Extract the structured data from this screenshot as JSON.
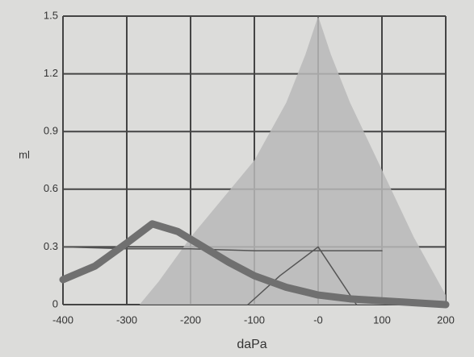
{
  "chart_data": {
    "type": "line",
    "xlabel": "daPa",
    "ylabel": "ml",
    "xlim": [
      -400,
      200
    ],
    "ylim": [
      0,
      1.5
    ],
    "xticks": [
      -400,
      -300,
      -200,
      -100,
      {
        "value": 0,
        "label": "-0"
      },
      100,
      200
    ],
    "yticks": [
      0,
      0.3,
      0.6,
      0.9,
      1.2,
      1.5
    ],
    "grid": true,
    "series": [
      {
        "kind": "area",
        "color": "#b8b8b8",
        "x": [
          -280,
          -250,
          -200,
          -150,
          -100,
          -50,
          -20,
          0,
          20,
          50,
          100,
          150,
          200
        ],
        "values": [
          0,
          0.12,
          0.35,
          0.55,
          0.75,
          1.05,
          1.3,
          1.5,
          1.3,
          1.05,
          0.7,
          0.35,
          0.05
        ]
      },
      {
        "kind": "line",
        "color": "#555",
        "width": 1.5,
        "x": [
          -400,
          -300,
          -200,
          -100,
          0,
          100
        ],
        "values": [
          0.3,
          0.29,
          0.29,
          0.28,
          0.28,
          0.28
        ]
      },
      {
        "kind": "line",
        "color": "#555",
        "width": 1.5,
        "x": [
          -110,
          -60,
          0,
          30,
          60
        ],
        "values": [
          0,
          0.15,
          0.3,
          0.15,
          0
        ]
      },
      {
        "kind": "line",
        "color": "#707070",
        "width": 9,
        "x": [
          -400,
          -350,
          -300,
          -260,
          -220,
          -180,
          -140,
          -100,
          -50,
          0,
          50,
          100,
          150,
          200
        ],
        "values": [
          0.13,
          0.2,
          0.32,
          0.42,
          0.38,
          0.3,
          0.22,
          0.15,
          0.09,
          0.05,
          0.03,
          0.02,
          0.01,
          0.0
        ]
      }
    ]
  }
}
